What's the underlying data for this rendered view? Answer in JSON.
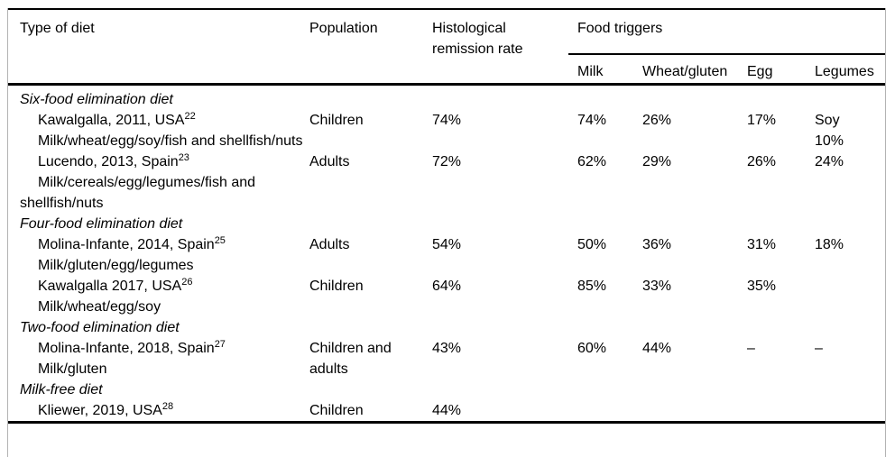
{
  "colors": {
    "text": "#000000",
    "rules": "#000000",
    "frame": "#b3b3b3",
    "background": "#ffffff"
  },
  "header": {
    "col_type_of_diet": "Type of diet",
    "col_population": "Population",
    "col_remission": "Histological remission rate",
    "group_food_triggers": "Food triggers",
    "sub_milk": "Milk",
    "sub_wheat_gluten": "Wheat/gluten",
    "sub_egg": "Egg",
    "sub_legumes": "Legumes"
  },
  "sections": [
    {
      "title": "Six-food elimination diet",
      "studies": [
        {
          "name": "Kawalgalla, 2011, USA",
          "ref": "22",
          "diet": "Milk/wheat/egg/soy/fish and shellfish/nuts",
          "population": "Children",
          "remission": "74%",
          "milk": "74%",
          "wheat_gluten": "26%",
          "egg": "17%",
          "legumes": "Soy\n10%"
        },
        {
          "name": "Lucendo, 2013, Spain",
          "ref": "23",
          "diet": "Milk/cereals/egg/legumes/fish and shellfish/nuts",
          "population": "Adults",
          "remission": "72%",
          "milk": "62%",
          "wheat_gluten": "29%",
          "egg": "26%",
          "legumes": "24%"
        }
      ]
    },
    {
      "title": "Four-food elimination diet",
      "studies": [
        {
          "name": "Molina-Infante, 2014, Spain",
          "ref": "25",
          "diet": "Milk/gluten/egg/legumes",
          "population": "Adults",
          "remission": "54%",
          "milk": "50%",
          "wheat_gluten": "36%",
          "egg": "31%",
          "legumes": "18%"
        },
        {
          "name": "Kawalgalla 2017, USA",
          "ref": "26",
          "diet": "Milk/wheat/egg/soy",
          "population": "Children",
          "remission": "64%",
          "milk": "85%",
          "wheat_gluten": "33%",
          "egg": "35%",
          "legumes": ""
        }
      ]
    },
    {
      "title": "Two-food elimination diet",
      "studies": [
        {
          "name": "Molina-Infante, 2018, Spain",
          "ref": "27",
          "diet": "Milk/gluten",
          "population": "Children and adults",
          "remission": "43%",
          "milk": "60%",
          "wheat_gluten": "44%",
          "egg": "–",
          "legumes": "–"
        }
      ]
    },
    {
      "title": "Milk-free diet",
      "studies": [
        {
          "name": "Kliewer, 2019, USA",
          "ref": "28",
          "diet": "",
          "population": "Children",
          "remission": "44%",
          "milk": "",
          "wheat_gluten": "",
          "egg": "",
          "legumes": ""
        }
      ]
    }
  ]
}
